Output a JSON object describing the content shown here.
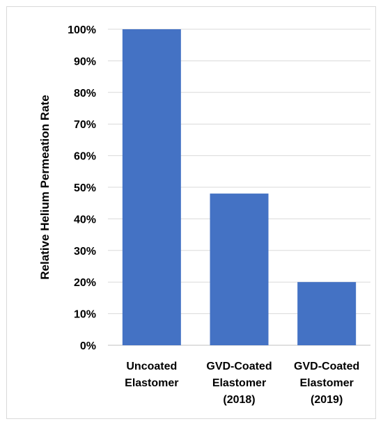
{
  "chart_data": {
    "type": "bar",
    "title": "",
    "xlabel": "",
    "ylabel": "Relative Helium Permeation Rate",
    "categories": [
      [
        "Uncoated",
        "Elastomer"
      ],
      [
        "GVD-Coated",
        "Elastomer",
        "(2018)"
      ],
      [
        "GVD-Coated",
        "Elastomer",
        "(2019)"
      ]
    ],
    "values": [
      100,
      48,
      20
    ],
    "ylim": [
      0,
      100
    ],
    "y_ticks": [
      0,
      10,
      20,
      30,
      40,
      50,
      60,
      70,
      80,
      90,
      100
    ],
    "y_tick_format": "percent",
    "grid": true,
    "legend": "none",
    "colors": {
      "bar": "#4472C4",
      "grid": "#d9d9d9",
      "axis": "#bfbfbf"
    }
  }
}
